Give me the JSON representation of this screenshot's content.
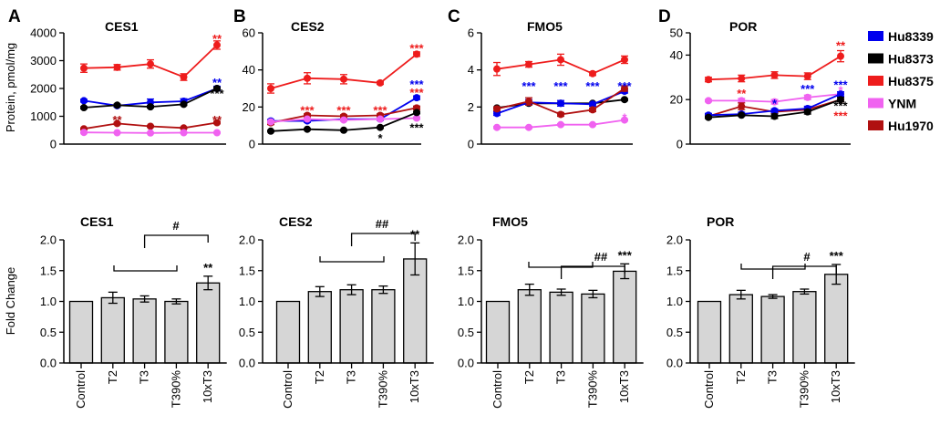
{
  "figure": {
    "top_ylabel": "Protein, pmol/mg",
    "bottom_ylabel": "Fold Change",
    "x_categories": [
      "Control",
      "T2",
      "T3",
      "T390%",
      "10xT3"
    ]
  },
  "legend": [
    {
      "name": "Hu8339",
      "color": "#0000ee"
    },
    {
      "name": "Hu8373",
      "color": "#000000"
    },
    {
      "name": "Hu8375",
      "color": "#ee1c1c"
    },
    {
      "name": "YNM",
      "color": "#f062f0"
    },
    {
      "name": "Hu1970",
      "color": "#b01010"
    }
  ],
  "chart_data": [
    {
      "type": "line",
      "letter": "A",
      "title": "CES1",
      "ylim": [
        0,
        4000
      ],
      "yticks": [
        "0",
        "1000",
        "2000",
        "3000",
        "4000"
      ],
      "categories": [
        "Control",
        "T2",
        "T3",
        "T390%",
        "10xT3"
      ],
      "series": [
        {
          "name": "Hu8375",
          "color": "#ee1c1c",
          "values": [
            2730,
            2760,
            2880,
            2410,
            3560
          ],
          "errors": [
            150,
            100,
            150,
            120,
            150
          ]
        },
        {
          "name": "Hu8339",
          "color": "#0000ee",
          "values": [
            1560,
            1380,
            1500,
            1540,
            2000
          ],
          "errors": [
            50,
            50,
            120,
            90,
            80
          ]
        },
        {
          "name": "Hu8373",
          "color": "#000000",
          "values": [
            1310,
            1400,
            1340,
            1430,
            2000
          ],
          "errors": [
            40,
            40,
            40,
            40,
            40
          ]
        },
        {
          "name": "Hu1970",
          "color": "#b01010",
          "values": [
            550,
            740,
            640,
            580,
            770
          ],
          "errors": [
            30,
            40,
            30,
            30,
            40
          ]
        },
        {
          "name": "YNM",
          "color": "#f062f0",
          "values": [
            420,
            410,
            400,
            410,
            410
          ],
          "errors": [
            20,
            20,
            20,
            20,
            20
          ]
        }
      ],
      "annotations": [
        {
          "text": "**",
          "color": "#ee1c1c",
          "x": 4,
          "y": 3770
        },
        {
          "text": "**",
          "color": "#0000ee",
          "x": 4,
          "y": 2200
        },
        {
          "text": "***",
          "color": "#000000",
          "x": 4,
          "y": 1800
        },
        {
          "text": "**",
          "color": "#b01010",
          "x": 1,
          "y": 850
        },
        {
          "text": "**",
          "color": "#b01010",
          "x": 4,
          "y": 850
        }
      ]
    },
    {
      "type": "line",
      "letter": "B",
      "title": "CES2",
      "ylim": [
        0,
        60
      ],
      "yticks": [
        "0",
        "20",
        "40",
        "60"
      ],
      "categories": [
        "Control",
        "T2",
        "T3",
        "T390%",
        "10xT3"
      ],
      "series": [
        {
          "name": "Hu8375",
          "color": "#ee1c1c",
          "values": [
            30,
            35.5,
            35,
            33,
            48.5
          ],
          "errors": [
            2.5,
            3,
            2.5,
            0.8,
            1.2
          ]
        },
        {
          "name": "Hu8339",
          "color": "#0000ee",
          "values": [
            12.5,
            12.5,
            13.5,
            13.5,
            25
          ],
          "errors": [
            0.8,
            0.8,
            0.8,
            0.8,
            1
          ]
        },
        {
          "name": "Hu1970",
          "color": "#b01010",
          "values": [
            11.5,
            15.5,
            15,
            15.5,
            19.5
          ],
          "errors": [
            1,
            0.8,
            0.8,
            0.8,
            1
          ]
        },
        {
          "name": "YNM",
          "color": "#f062f0",
          "values": [
            12,
            13.5,
            13,
            13.5,
            14
          ],
          "errors": [
            0.6,
            0.6,
            0.6,
            0.6,
            0.6
          ]
        },
        {
          "name": "Hu8373",
          "color": "#000000",
          "values": [
            7,
            8,
            7.5,
            9,
            17
          ],
          "errors": [
            0.4,
            0.4,
            0.4,
            0.4,
            0.6
          ]
        }
      ],
      "annotations": [
        {
          "text": "***",
          "color": "#ee1c1c",
          "x": 4,
          "y": 51.5
        },
        {
          "text": "***",
          "color": "#0000ee",
          "x": 4,
          "y": 32
        },
        {
          "text": "***",
          "color": "#ee1c1c",
          "x": 4,
          "y": 27.5
        },
        {
          "text": "***",
          "color": "#ee1c1c",
          "x": 1,
          "y": 18
        },
        {
          "text": "***",
          "color": "#ee1c1c",
          "x": 2,
          "y": 18
        },
        {
          "text": "***",
          "color": "#ee1c1c",
          "x": 3,
          "y": 18
        },
        {
          "text": "*",
          "color": "#000000",
          "x": 3,
          "y": 3
        },
        {
          "text": "***",
          "color": "#000000",
          "x": 4,
          "y": 8.5
        }
      ]
    },
    {
      "type": "line",
      "letter": "C",
      "title": "FMO5",
      "ylim": [
        0,
        6
      ],
      "yticks": [
        "0",
        "2",
        "4",
        "6"
      ],
      "categories": [
        "Control",
        "T2",
        "T3",
        "T390%",
        "10xT3"
      ],
      "series": [
        {
          "name": "Hu8375",
          "color": "#ee1c1c",
          "values": [
            4.05,
            4.3,
            4.55,
            3.8,
            4.55
          ],
          "errors": [
            0.35,
            0.15,
            0.3,
            0.1,
            0.2
          ]
        },
        {
          "name": "Hu8373",
          "color": "#000000",
          "values": [
            1.95,
            2.2,
            2.2,
            2.2,
            2.4
          ],
          "errors": [
            0.05,
            0.05,
            0.05,
            0.05,
            0.05
          ]
        },
        {
          "name": "Hu8339",
          "color": "#0000ee",
          "values": [
            1.65,
            2.25,
            2.2,
            2.15,
            2.85
          ],
          "errors": [
            0.1,
            0.15,
            0.15,
            0.1,
            0.1
          ]
        },
        {
          "name": "Hu1970",
          "color": "#b01010",
          "values": [
            1.9,
            2.3,
            1.6,
            1.85,
            3.0
          ],
          "errors": [
            0.1,
            0.2,
            0.1,
            0.1,
            0.15
          ]
        },
        {
          "name": "YNM",
          "color": "#f062f0",
          "values": [
            0.9,
            0.9,
            1.05,
            1.05,
            1.3
          ],
          "errors": [
            0.05,
            0.05,
            0.05,
            0.05,
            0.05
          ]
        }
      ],
      "annotations": [
        {
          "text": "***",
          "color": "#0000ee",
          "x": 1,
          "y": 3.1
        },
        {
          "text": "***",
          "color": "#0000ee",
          "x": 2,
          "y": 3.1
        },
        {
          "text": "***",
          "color": "#0000ee",
          "x": 3,
          "y": 3.1
        },
        {
          "text": "***",
          "color": "#0000ee",
          "x": 4,
          "y": 3.1
        },
        {
          "text": "*",
          "color": "#f062f0",
          "x": 4,
          "y": 1.4
        }
      ]
    },
    {
      "type": "line",
      "letter": "D",
      "title": "POR",
      "ylim": [
        0,
        50
      ],
      "yticks": [
        "0",
        "20",
        "40",
        "50"
      ],
      "categories": [
        "Control",
        "T2",
        "T3",
        "T390%",
        "10xT3"
      ],
      "series": [
        {
          "name": "Hu8375",
          "color": "#ee1c1c",
          "values": [
            29,
            29.5,
            31,
            30.5,
            39.5
          ],
          "errors": [
            1,
            1.5,
            1.5,
            1.5,
            2.5
          ]
        },
        {
          "name": "YNM",
          "color": "#f062f0",
          "values": [
            19.5,
            19.5,
            19,
            21,
            22.5
          ],
          "errors": [
            0.5,
            1,
            1,
            1,
            1
          ]
        },
        {
          "name": "Hu1970",
          "color": "#b01010",
          "values": [
            12.5,
            17,
            14.5,
            15.5,
            20
          ],
          "errors": [
            0.8,
            1.5,
            0.8,
            0.8,
            1
          ]
        },
        {
          "name": "Hu8339",
          "color": "#0000ee",
          "values": [
            13,
            13.5,
            15,
            16,
            22.5
          ],
          "errors": [
            0.8,
            0.8,
            0.8,
            1,
            1
          ]
        },
        {
          "name": "Hu8373",
          "color": "#000000",
          "values": [
            12,
            13,
            12.5,
            14.5,
            20
          ],
          "errors": [
            0.5,
            0.5,
            1,
            1,
            1
          ]
        }
      ],
      "annotations": [
        {
          "text": "**",
          "color": "#ee1c1c",
          "x": 4,
          "y": 44
        },
        {
          "text": "***",
          "color": "#0000ee",
          "x": 4,
          "y": 26.5
        },
        {
          "text": "*",
          "color": "#f062f0",
          "x": 4,
          "y": 24
        },
        {
          "text": "***",
          "color": "#000000",
          "x": 4,
          "y": 17
        },
        {
          "text": "***",
          "color": "#ee1c1c",
          "x": 4,
          "y": 12.5
        },
        {
          "text": "**",
          "color": "#ee1c1c",
          "x": 1,
          "y": 22.5
        },
        {
          "text": "*",
          "color": "#0000ee",
          "x": 2,
          "y": 18
        },
        {
          "text": "***",
          "color": "#0000ee",
          "x": 3,
          "y": 24.5
        }
      ]
    },
    {
      "type": "bar",
      "title": "CES1",
      "ylabel": "Fold Change",
      "ylim": [
        0,
        2.0
      ],
      "yticks": [
        "0.0",
        "0.5",
        "1.0",
        "1.5",
        "2.0"
      ],
      "categories": [
        "Control",
        "T2",
        "T3",
        "T390%",
        "10xT3"
      ],
      "values": [
        1.0,
        1.06,
        1.04,
        1.0,
        1.3
      ],
      "errors": [
        0,
        0.09,
        0.05,
        0.04,
        0.11
      ],
      "star": "**",
      "hash": "#"
    },
    {
      "type": "bar",
      "title": "CES2",
      "ylim": [
        0,
        2.0
      ],
      "yticks": [
        "0.0",
        "0.5",
        "1.0",
        "1.5",
        "2.0"
      ],
      "categories": [
        "Control",
        "T2",
        "T3",
        "T390%",
        "10xT3"
      ],
      "values": [
        1.0,
        1.16,
        1.19,
        1.19,
        1.69
      ],
      "errors": [
        0,
        0.08,
        0.08,
        0.06,
        0.26
      ],
      "star": "**",
      "hash": "##"
    },
    {
      "type": "bar",
      "title": "FMO5",
      "ylim": [
        0,
        2.0
      ],
      "yticks": [
        "0.0",
        "0.5",
        "1.0",
        "1.5",
        "2.0"
      ],
      "categories": [
        "Control",
        "T2",
        "T3",
        "T390%",
        "10xT3"
      ],
      "values": [
        1.0,
        1.19,
        1.15,
        1.12,
        1.49
      ],
      "errors": [
        0,
        0.09,
        0.05,
        0.06,
        0.12
      ],
      "star": "***",
      "hash": "##"
    },
    {
      "type": "bar",
      "title": "POR",
      "ylim": [
        0,
        2.0
      ],
      "yticks": [
        "0.0",
        "0.5",
        "1.0",
        "1.5",
        "2.0"
      ],
      "categories": [
        "Control",
        "T2",
        "T3",
        "T390%",
        "10xT3"
      ],
      "values": [
        1.0,
        1.11,
        1.08,
        1.16,
        1.44
      ],
      "errors": [
        0,
        0.07,
        0.03,
        0.04,
        0.16
      ],
      "star": "***",
      "hash": "#"
    }
  ]
}
